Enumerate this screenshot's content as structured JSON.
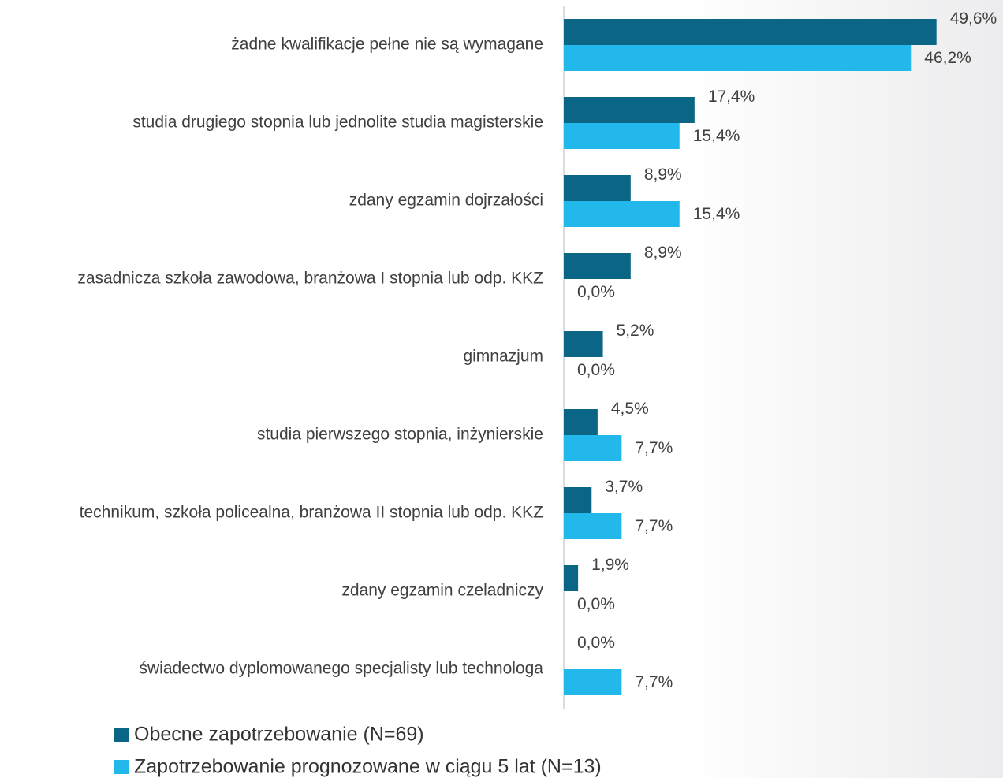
{
  "chart_data": {
    "type": "bar",
    "orientation": "horizontal",
    "categories": [
      "żadne kwalifikacje pełne nie są wymagane",
      "studia drugiego stopnia lub jednolite studia magisterskie",
      "zdany egzamin dojrzałości",
      "zasadnicza szkoła zawodowa, branżowa I stopnia  lub odp. KKZ",
      "gimnazjum",
      "studia pierwszego stopnia, inżynierskie",
      "technikum, szkoła policealna, branżowa II stopnia lub odp. KKZ",
      "zdany egzamin czeladniczy",
      "świadectwo dyplomowanego specjalisty lub technologa"
    ],
    "series": [
      {
        "name": "Obecne zapotrzebowanie (N=69)",
        "color": "#0b6685",
        "values": [
          49.6,
          17.4,
          8.9,
          8.9,
          5.2,
          4.5,
          3.7,
          1.9,
          0.0
        ],
        "value_labels": [
          "49,6%",
          "17,4%",
          "8,9%",
          "8,9%",
          "5,2%",
          "4,5%",
          "3,7%",
          "1,9%",
          "0,0%"
        ]
      },
      {
        "name": "Zapotrzebowanie prognozowane w ciągu 5 lat (N=13)",
        "color": "#22b8ec",
        "values": [
          46.2,
          15.4,
          15.4,
          0.0,
          0.0,
          7.7,
          7.7,
          0.0,
          7.7
        ],
        "value_labels": [
          "46,2%",
          "15,4%",
          "15,4%",
          "0,0%",
          "0,0%",
          "7,7%",
          "7,7%",
          "0,0%",
          "7,7%"
        ]
      }
    ],
    "xlim": [
      0,
      50
    ],
    "legend": "bottom"
  }
}
